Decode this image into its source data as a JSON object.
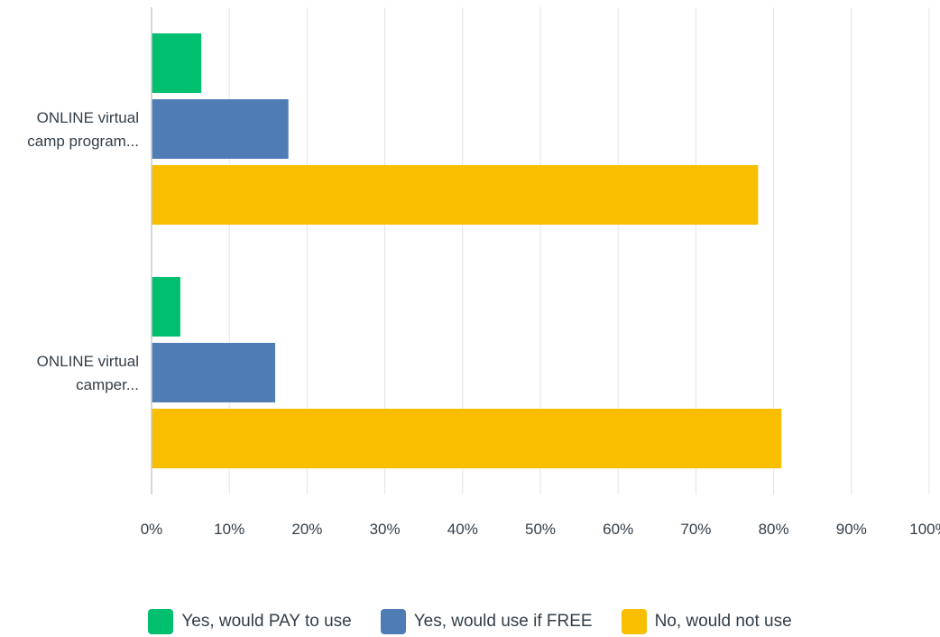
{
  "chart_data": {
    "type": "bar",
    "orientation": "horizontal",
    "categories": [
      "ONLINE virtual camp program...",
      "ONLINE virtual camper..."
    ],
    "category_lines": [
      [
        "ONLINE virtual",
        "camp program..."
      ],
      [
        "ONLINE virtual",
        "camper..."
      ]
    ],
    "series": [
      {
        "name": "Yes, would PAY to use",
        "color": "#00bf6f",
        "values": [
          6.4,
          3.7
        ]
      },
      {
        "name": "Yes, would use if FREE",
        "color": "#507cb6",
        "values": [
          17.6,
          15.9
        ]
      },
      {
        "name": "No, would not use",
        "color": "#f9be00",
        "values": [
          78.0,
          81.0
        ]
      }
    ],
    "x_ticks": [
      "0%",
      "10%",
      "20%",
      "30%",
      "40%",
      "50%",
      "60%",
      "70%",
      "80%",
      "90%",
      "100%"
    ],
    "xlim": [
      0,
      100
    ],
    "grid": true,
    "legend_position": "bottom"
  }
}
